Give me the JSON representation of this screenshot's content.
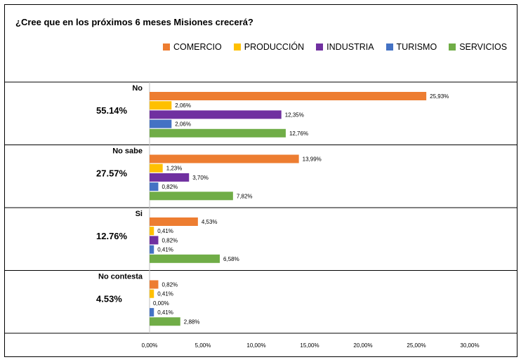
{
  "chart_data": {
    "type": "bar",
    "orientation": "horizontal",
    "title": "¿Cree que en los próximos 6 meses Misiones crecerá?",
    "legend_position": "top",
    "series_names": [
      "COMERCIO",
      "PRODUCCIÓN",
      "INDUSTRIA",
      "TURISMO",
      "SERVICIOS"
    ],
    "colors": [
      "#ED7D31",
      "#FFC000",
      "#7030A0",
      "#4472C4",
      "#70AD47"
    ],
    "xlim": [
      0,
      30
    ],
    "x_ticks": [
      "0,00%",
      "5,00%",
      "10,00%",
      "15,00%",
      "20,00%",
      "25,00%",
      "30,00%"
    ],
    "groups": [
      {
        "label": "No",
        "total": "55.14%",
        "values": [
          25.93,
          2.06,
          12.35,
          2.06,
          12.76
        ],
        "value_labels": [
          "25,93%",
          "2,06%",
          "12,35%",
          "2,06%",
          "12,76%"
        ]
      },
      {
        "label": "No sabe",
        "total": "27.57%",
        "values": [
          13.99,
          1.23,
          3.7,
          0.82,
          7.82
        ],
        "value_labels": [
          "13,99%",
          "1,23%",
          "3,70%",
          "0,82%",
          "7,82%"
        ]
      },
      {
        "label": "Si",
        "total": "12.76%",
        "values": [
          4.53,
          0.41,
          0.82,
          0.41,
          6.58
        ],
        "value_labels": [
          "4,53%",
          "0,41%",
          "0,82%",
          "0,41%",
          "6,58%"
        ]
      },
      {
        "label": "No contesta",
        "total": "4.53%",
        "values": [
          0.82,
          0.41,
          0.0,
          0.41,
          2.88
        ],
        "value_labels": [
          "0,82%",
          "0,41%",
          "0,00%",
          "0,41%",
          "2,88%"
        ]
      }
    ]
  }
}
